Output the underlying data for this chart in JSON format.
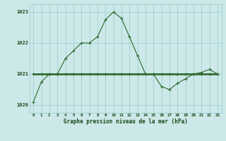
{
  "hours": [
    0,
    1,
    2,
    3,
    4,
    5,
    6,
    7,
    8,
    9,
    10,
    11,
    12,
    13,
    14,
    15,
    16,
    17,
    18,
    19,
    20,
    21,
    22,
    23
  ],
  "pressure_main": [
    1020.1,
    1020.75,
    1021.0,
    1021.0,
    1021.5,
    1021.75,
    1022.0,
    1022.0,
    1022.2,
    1022.75,
    1023.0,
    1022.8,
    1022.2,
    1021.6,
    1021.0,
    1021.0,
    1020.6,
    1020.5,
    1020.7,
    1020.85,
    1021.0,
    1021.05,
    1021.15,
    1021.0
  ],
  "pressure_flat": [
    1021.0,
    1021.0,
    1021.0,
    1021.0,
    1021.0,
    1021.0,
    1021.0,
    1021.0,
    1021.0,
    1021.0,
    1021.0,
    1021.0,
    1021.0,
    1021.0,
    1021.0,
    1021.0,
    1021.0,
    1021.0,
    1021.0,
    1021.0,
    1021.0,
    1021.0,
    1021.0,
    1021.0
  ],
  "ylim": [
    1019.75,
    1023.25
  ],
  "yticks": [
    1020,
    1021,
    1022,
    1023
  ],
  "xlim": [
    -0.5,
    23.5
  ],
  "xlabel": "Graphe pression niveau de la mer (hPa)",
  "line_color": "#2d6a2d",
  "bg_color": "#cce8e8",
  "grid_color": "#99cccc",
  "font_color": "#1a4a1a"
}
